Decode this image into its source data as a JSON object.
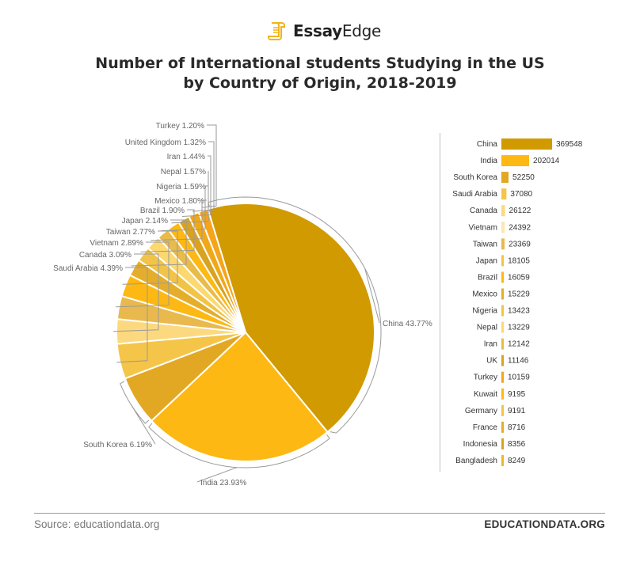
{
  "header": {
    "logo_strong": "Essay",
    "logo_light": "Edge",
    "title_line1": "Number of International students Studying in the US",
    "title_line2": "by Country of Origin, 2018-2019"
  },
  "footer": {
    "source": "Source: educationdata.org",
    "brand": "EDUCATIONDATA.ORG"
  },
  "chart_data": [
    {
      "type": "pie",
      "slices": [
        {
          "label": "China",
          "percent": 43.77,
          "text": "China 43.77%",
          "color": "#d19a00"
        },
        {
          "label": "India",
          "percent": 23.93,
          "text": "India 23.93%",
          "color": "#fdb813"
        },
        {
          "label": "South Korea",
          "percent": 6.19,
          "text": "South Korea 6.19%",
          "color": "#e2a823"
        },
        {
          "label": "Saudi Arabia",
          "percent": 4.39,
          "text": "",
          "color": "#f4c548"
        },
        {
          "label": "Canada",
          "percent": 3.09,
          "text": "",
          "color": "#fcd97e"
        },
        {
          "label": "Vietnam",
          "percent": 2.89,
          "text": "",
          "color": "#e9b94e"
        },
        {
          "label": "Taiwan",
          "percent": 2.77,
          "text": "",
          "color": "#fdb813"
        },
        {
          "label": "Japan",
          "percent": 2.14,
          "text": "",
          "color": "#e4ad2b"
        },
        {
          "label": "Brazil",
          "percent": 1.9,
          "text": "",
          "color": "#f1c447"
        },
        {
          "label": "Mexico",
          "percent": 1.8,
          "text": "Saudi Arabia 4.39%",
          "color": "#fcd870"
        },
        {
          "label": "Nigeria",
          "percent": 1.59,
          "text": "Canada 3.09%",
          "color": "#e8bb4a"
        },
        {
          "label": "Nepal",
          "percent": 1.57,
          "text": "Vietnam 2.89%",
          "color": "#fdb813"
        },
        {
          "label": "Iran",
          "percent": 1.44,
          "text": "Taiwan 2.77%",
          "color": "#d9a320"
        },
        {
          "label": "United Kingdom",
          "percent": 1.32,
          "text": "Japan 2.14%",
          "color": "#f0a818"
        },
        {
          "label": "Turkey",
          "percent": 1.2,
          "text": "Brazil 1.90%",
          "color": "#f7a41a"
        }
      ],
      "labels": [
        "Turkey 1.20%",
        "United Kingdom 1.32%",
        "Iran 1.44%",
        "Nepal 1.57%",
        "Nigeria 1.59%",
        "Mexico 1.80%",
        "Brazil 1.90%",
        "Japan 2.14%",
        "Taiwan 2.77%",
        "Vietnam 2.89%",
        "Canada 3.09%",
        "Saudi Arabia 4.39%",
        "South Korea 6.19%",
        "India 23.93%",
        "China 43.77%"
      ]
    },
    {
      "type": "bar",
      "orientation": "horizontal",
      "categories": [
        "China",
        "India",
        "South Korea",
        "Saudi Arabia",
        "Canada",
        "Vietnam",
        "Taiwan",
        "Japan",
        "Brazil",
        "Mexico",
        "Nigeria",
        "Nepal",
        "Iran",
        "UK",
        "Turkey",
        "Kuwait",
        "Germany",
        "France",
        "Indonesia",
        "Bangladesh"
      ],
      "values": [
        369548,
        202014,
        52250,
        37080,
        26122,
        24392,
        23369,
        18105,
        16059,
        15229,
        13423,
        13229,
        12142,
        11146,
        10159,
        9195,
        9191,
        8716,
        8356,
        8249
      ],
      "value_labels": [
        "369548",
        "202014",
        "52250",
        "37080",
        "26122",
        "24392",
        "23369",
        "18105",
        "16059",
        "15229",
        "13423",
        "13229",
        "12142",
        "11146",
        "10159",
        "9195",
        "9191",
        "8716",
        "8356",
        "8249"
      ],
      "colors": [
        "#d19a00",
        "#fdb813",
        "#e2a823",
        "#f4c548",
        "#fcd97e",
        "#fce7b0",
        "#e9b94e",
        "#f1c447",
        "#fdb813",
        "#e4ad2b",
        "#f1c447",
        "#fcd870",
        "#e8bb4a",
        "#d9a320",
        "#f0a818",
        "#fdb813",
        "#f1c447",
        "#e4ad2b",
        "#d9a320",
        "#f0b52a"
      ]
    }
  ]
}
